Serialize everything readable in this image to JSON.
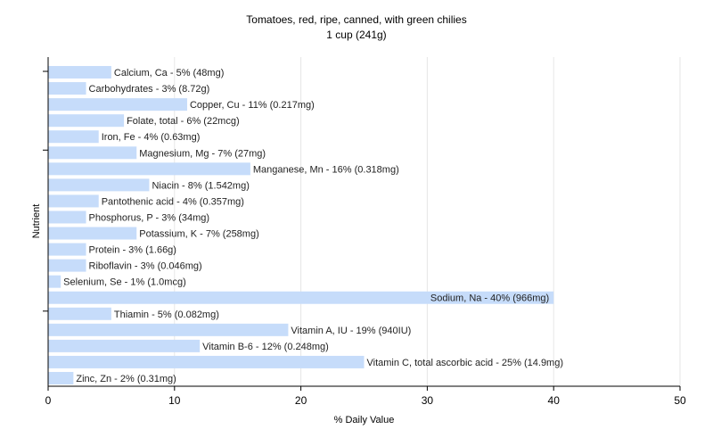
{
  "chart_data": {
    "type": "bar",
    "orientation": "horizontal",
    "title": "Tomatoes, red, ripe, canned, with green chilies",
    "subtitle": "1 cup (241g)",
    "xlabel": "% Daily Value",
    "ylabel": "Nutrient",
    "xlim": [
      0,
      50
    ],
    "xticks": [
      0,
      10,
      20,
      30,
      40,
      50
    ],
    "grid": true,
    "bar_color": "#c6dcfa",
    "categories": [
      "Calcium, Ca - 5% (48mg)",
      "Carbohydrates - 3% (8.72g)",
      "Copper, Cu - 11% (0.217mg)",
      "Folate, total - 6% (22mcg)",
      "Iron, Fe - 4% (0.63mg)",
      "Magnesium, Mg - 7% (27mg)",
      "Manganese, Mn - 16% (0.318mg)",
      "Niacin - 8% (1.542mg)",
      "Pantothenic acid - 4% (0.357mg)",
      "Phosphorus, P - 3% (34mg)",
      "Potassium, K - 7% (258mg)",
      "Protein - 3% (1.66g)",
      "Riboflavin - 3% (0.046mg)",
      "Selenium, Se - 1% (1.0mcg)",
      "Sodium, Na - 40% (966mg)",
      "Thiamin - 5% (0.082mg)",
      "Vitamin A, IU - 19% (940IU)",
      "Vitamin B-6 - 12% (0.248mg)",
      "Vitamin C, total ascorbic acid - 25% (14.9mg)",
      "Zinc, Zn - 2% (0.31mg)"
    ],
    "values": [
      5,
      3,
      11,
      6,
      4,
      7,
      16,
      8,
      4,
      3,
      7,
      3,
      3,
      1,
      40,
      5,
      19,
      12,
      25,
      2
    ]
  }
}
